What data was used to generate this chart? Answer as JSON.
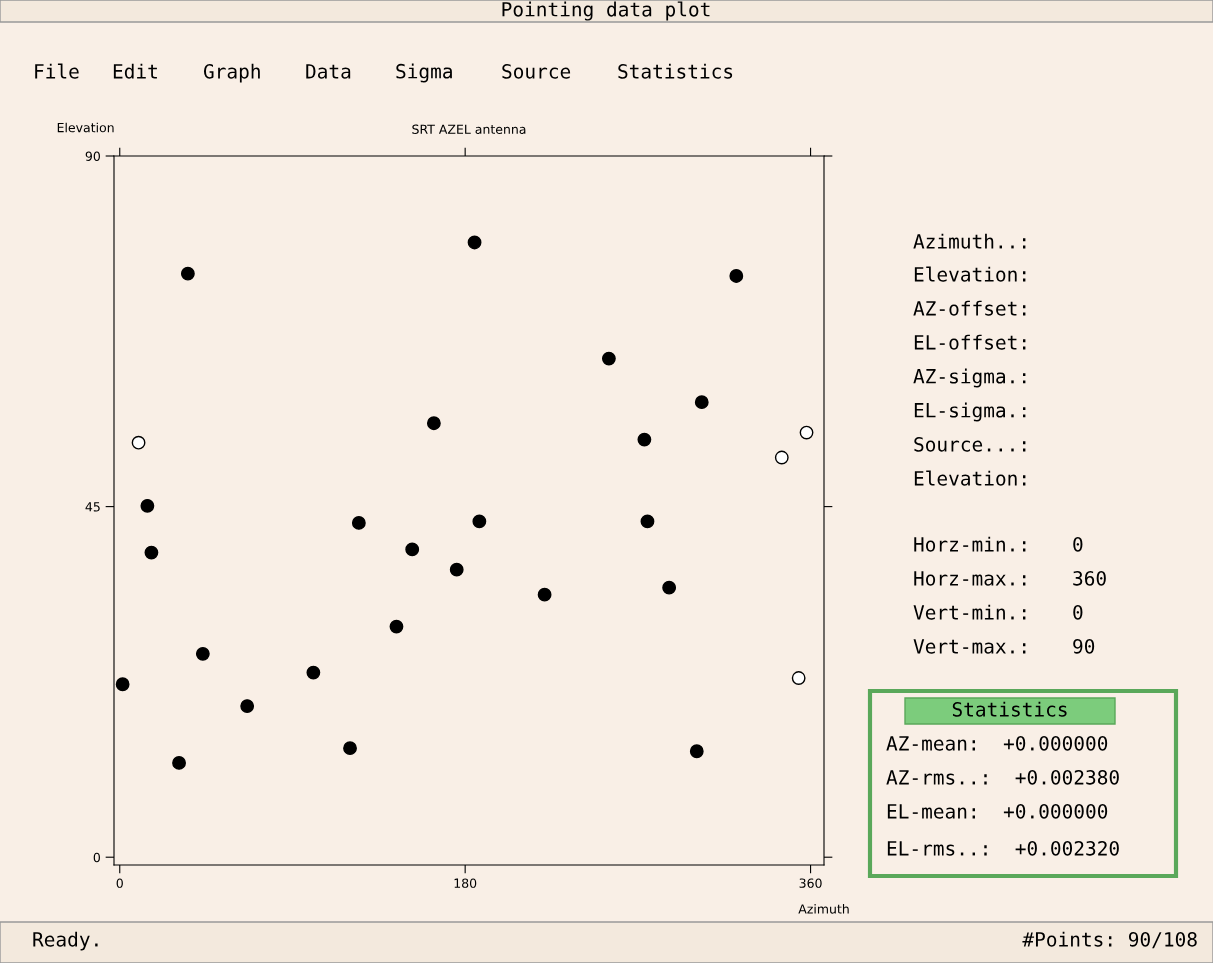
{
  "chart_data": {
    "type": "scatter",
    "title": "SRT AZEL antenna",
    "xlabel": "Azimuth",
    "ylabel": "Elevation",
    "xlim": [
      -3,
      367
    ],
    "ylim": [
      -1,
      90
    ],
    "xticks": [
      0,
      180,
      360
    ],
    "yticks": [
      0,
      45,
      90
    ],
    "grid": false,
    "legend": false,
    "marker": "circle",
    "series": [
      {
        "color": "#000000",
        "x": [
          1.5,
          14.4,
          16.5,
          30.9,
          35.5,
          43.3,
          66.4,
          100.9,
          120,
          124.6,
          144.2,
          152.4,
          163.7,
          175.6,
          184.9,
          187.4,
          221.4,
          254.9,
          273.4,
          275,
          286.3,
          300.7,
          303.3,
          321.3
        ],
        "values": [
          22.2,
          45.1,
          39.1,
          12.1,
          74.9,
          26.1,
          19.4,
          23.7,
          14.0,
          42.9,
          29.6,
          39.5,
          55.7,
          36.9,
          78.9,
          43.1,
          33.7,
          64.0,
          53.6,
          43.1,
          34.6,
          13.6,
          58.4,
          74.6
        ]
      },
      {
        "color": "#ffffff",
        "x": [
          9.8,
          345,
          357.9,
          353.8
        ],
        "values": [
          53.2,
          51.3,
          54.5,
          23.0
        ]
      }
    ],
    "annotations": [
      "Pointing data plot",
      "File",
      "Edit",
      "Graph",
      "Data",
      "Sigma",
      "Source",
      "Statistics",
      "Azimuth..:",
      "Elevation:",
      "AZ-offset:",
      "EL-offset:",
      "AZ-sigma.:",
      "EL-sigma.:",
      "Source...:",
      "Elevation:",
      "Horz-min.:",
      "0",
      "Horz-max.:",
      "360",
      "Vert-min.:",
      "0",
      "Vert-max.:",
      "90",
      "Statistics",
      "AZ-mean:  +0.000000",
      "AZ-rms..:  +0.002380",
      "EL-mean:  +0.000000",
      "EL-rms..:  +0.002320",
      "Ready.",
      "#Points: 90/108"
    ]
  }
}
